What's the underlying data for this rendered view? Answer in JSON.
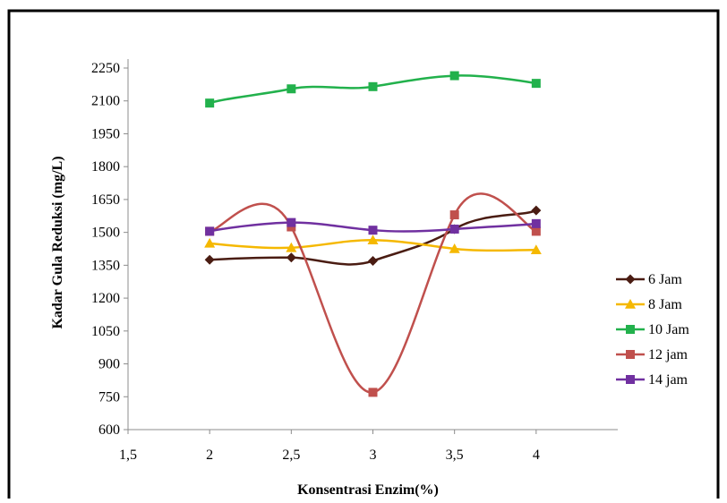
{
  "chart_data": {
    "type": "line",
    "title": "",
    "xlabel": "Konsentrasi Enzim(%)",
    "ylabel": "Kadar Gula Reduksi (mg/L)",
    "x_ticks": [
      "1,5",
      "2",
      "2,5",
      "3",
      "3,5",
      "4"
    ],
    "x_values": [
      1.5,
      2,
      2.5,
      3,
      3.5,
      4
    ],
    "y_ticks": [
      "600",
      "750",
      "900",
      "1050",
      "1200",
      "1350",
      "1500",
      "1650",
      "1800",
      "1950",
      "2100",
      "2250"
    ],
    "xlim": [
      1.5,
      4.5
    ],
    "ylim": [
      600,
      2250
    ],
    "smoothed": true,
    "grid": false,
    "legend_position": "right",
    "categories": [
      2,
      2.5,
      3,
      3.5,
      4
    ],
    "series": [
      {
        "name": "6 Jam",
        "color": "#4a1c12",
        "marker": "diamond",
        "values": [
          1375,
          1385,
          1370,
          1515,
          1600
        ]
      },
      {
        "name": "8 Jam",
        "color": "#f5b800",
        "marker": "triangle",
        "values": [
          1450,
          1430,
          1465,
          1425,
          1420
        ]
      },
      {
        "name": "10 Jam",
        "color": "#22b14c",
        "marker": "square",
        "values": [
          2090,
          2155,
          2165,
          2215,
          2180
        ]
      },
      {
        "name": "12 jam",
        "color": "#c0504d",
        "marker": "square",
        "values": [
          1505,
          1525,
          770,
          1580,
          1505
        ]
      },
      {
        "name": "14 jam",
        "color": "#7030a0",
        "marker": "square",
        "values": [
          1505,
          1545,
          1510,
          1515,
          1540
        ]
      }
    ]
  }
}
